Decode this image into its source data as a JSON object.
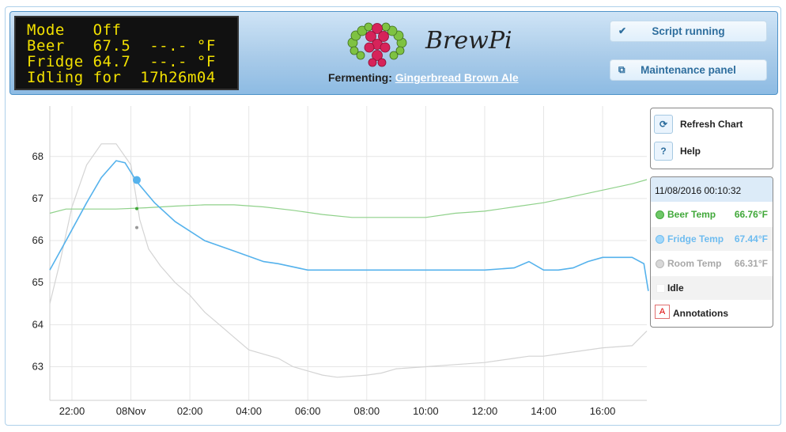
{
  "lcd": {
    "lines": [
      "Mode   Off",
      "Beer   67.5  --.- °F",
      "Fridge 64.7  --.- °F",
      "Idling for  17h26m04"
    ]
  },
  "brand": {
    "logo_text": "BrewPi"
  },
  "fermenting": {
    "label": "Fermenting:",
    "beer_name": "Gingerbread Brown Ale"
  },
  "header_buttons": {
    "script": {
      "label": "Script running",
      "icon": "check-icon"
    },
    "maintenance": {
      "label": "Maintenance panel",
      "icon": "new-window-icon"
    }
  },
  "controls": {
    "refresh_label": "Refresh Chart",
    "help_label": "Help",
    "help_glyph": "?"
  },
  "legend": {
    "timestamp": "11/08/2016 00:10:32",
    "items": [
      {
        "name": "Beer Temp",
        "value": "66.76°F",
        "color": "#41a83a"
      },
      {
        "name": "Fridge Temp",
        "value": "67.44°F",
        "color": "#6ebcf0"
      },
      {
        "name": "Room Temp",
        "value": "66.31°F",
        "color": "#b8b8b8"
      }
    ],
    "state_label": "Idle",
    "annotations_label": "Annotations",
    "annotations_glyph": "A"
  },
  "chart_data": {
    "type": "line",
    "x_unit": "hours",
    "x_range": [
      21.25,
      17.5
    ],
    "x_ticks": [
      {
        "label": "22:00",
        "h": 22
      },
      {
        "label": "08Nov",
        "h": 24
      },
      {
        "label": "02:00",
        "h": 26
      },
      {
        "label": "04:00",
        "h": 28
      },
      {
        "label": "06:00",
        "h": 30
      },
      {
        "label": "08:00",
        "h": 32
      },
      {
        "label": "10:00",
        "h": 34
      },
      {
        "label": "12:00",
        "h": 36
      },
      {
        "label": "14:00",
        "h": 38
      },
      {
        "label": "16:00",
        "h": 40
      }
    ],
    "ylim": [
      62.2,
      69.2
    ],
    "y_ticks": [
      63,
      64,
      65,
      66,
      67,
      68
    ],
    "grid": true,
    "series": [
      {
        "name": "Beer Temp",
        "color": "#8fd18a",
        "x": [
          21.25,
          21.8,
          22.5,
          23.5,
          24.5,
          25.5,
          26.5,
          27.5,
          28.5,
          29.5,
          30.5,
          31.5,
          32.5,
          33.5,
          34.0,
          35.0,
          36.0,
          37.0,
          38.0,
          39.0,
          40.0,
          41.0,
          41.5
        ],
        "y": [
          66.65,
          66.75,
          66.75,
          66.75,
          66.78,
          66.82,
          66.85,
          66.85,
          66.8,
          66.72,
          66.62,
          66.55,
          66.55,
          66.55,
          66.55,
          66.65,
          66.7,
          66.8,
          66.9,
          67.05,
          67.2,
          67.35,
          67.45
        ]
      },
      {
        "name": "Fridge Temp",
        "color": "#55b2ec",
        "x": [
          21.25,
          21.8,
          22.5,
          23.0,
          23.5,
          23.8,
          24.2,
          24.8,
          25.5,
          26.5,
          27.5,
          28.5,
          29.0,
          30.0,
          31.0,
          32.0,
          33.0,
          34.0,
          35.0,
          36.0,
          37.0,
          37.5,
          38.0,
          38.5,
          39.0,
          39.5,
          40.0,
          41.0,
          41.4,
          41.55
        ],
        "y": [
          65.3,
          66.0,
          66.9,
          67.5,
          67.9,
          67.85,
          67.4,
          66.9,
          66.45,
          66.0,
          65.75,
          65.5,
          65.45,
          65.3,
          65.3,
          65.3,
          65.3,
          65.3,
          65.3,
          65.3,
          65.35,
          65.5,
          65.3,
          65.3,
          65.35,
          65.5,
          65.6,
          65.6,
          65.45,
          64.8
        ]
      },
      {
        "name": "Room Temp",
        "color": "#d4d4d4",
        "x": [
          21.25,
          21.6,
          22.0,
          22.5,
          23.0,
          23.5,
          24.0,
          24.3,
          24.6,
          25.0,
          25.5,
          26.0,
          26.5,
          27.0,
          27.5,
          28.0,
          29.0,
          29.5,
          30.0,
          30.5,
          31.0,
          32.0,
          32.5,
          33.0,
          34.0,
          35.0,
          36.0,
          36.5,
          37.0,
          37.5,
          38.0,
          38.5,
          39.0,
          40.0,
          41.0,
          41.5
        ],
        "y": [
          64.5,
          65.5,
          66.8,
          67.8,
          68.3,
          68.3,
          67.8,
          66.5,
          65.8,
          65.4,
          65.0,
          64.7,
          64.3,
          64.0,
          63.7,
          63.4,
          63.2,
          63.0,
          62.9,
          62.8,
          62.75,
          62.8,
          62.85,
          62.95,
          63.0,
          63.05,
          63.1,
          63.15,
          63.2,
          63.25,
          63.25,
          63.3,
          63.35,
          63.45,
          63.5,
          63.85
        ]
      }
    ],
    "markers": [
      {
        "series": "Fridge Temp",
        "x": 24.2,
        "y": 67.44
      },
      {
        "series": "Beer Temp",
        "x": 24.2,
        "y": 66.76
      },
      {
        "series": "Room Temp",
        "x": 24.2,
        "y": 66.31
      }
    ]
  }
}
